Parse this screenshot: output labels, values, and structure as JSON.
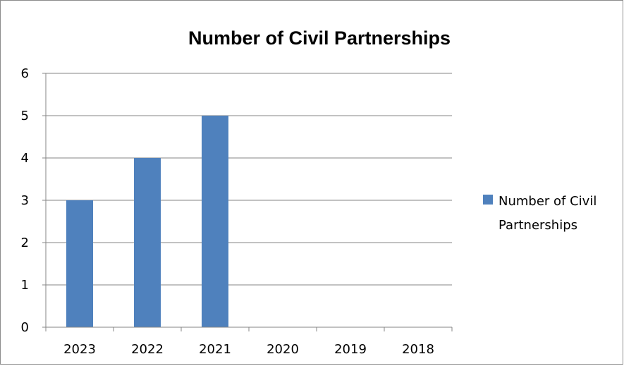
{
  "chart_data": {
    "type": "bar",
    "title": "Number of Civil Partnerships",
    "categories": [
      "2023",
      "2022",
      "2021",
      "2020",
      "2019",
      "2018"
    ],
    "series": [
      {
        "name": "Number of Civil Partnerships",
        "values": [
          3,
          4,
          5,
          0,
          0,
          0
        ],
        "color": "#4f81bd"
      }
    ],
    "xlabel": "",
    "ylabel": "",
    "ylim": [
      0,
      6
    ],
    "yticks": [
      "0",
      "1",
      "2",
      "3",
      "4",
      "5",
      "6"
    ],
    "grid": true,
    "legend_position": "right",
    "legend_lines": [
      "Number of Civil",
      "Partnerships"
    ]
  }
}
